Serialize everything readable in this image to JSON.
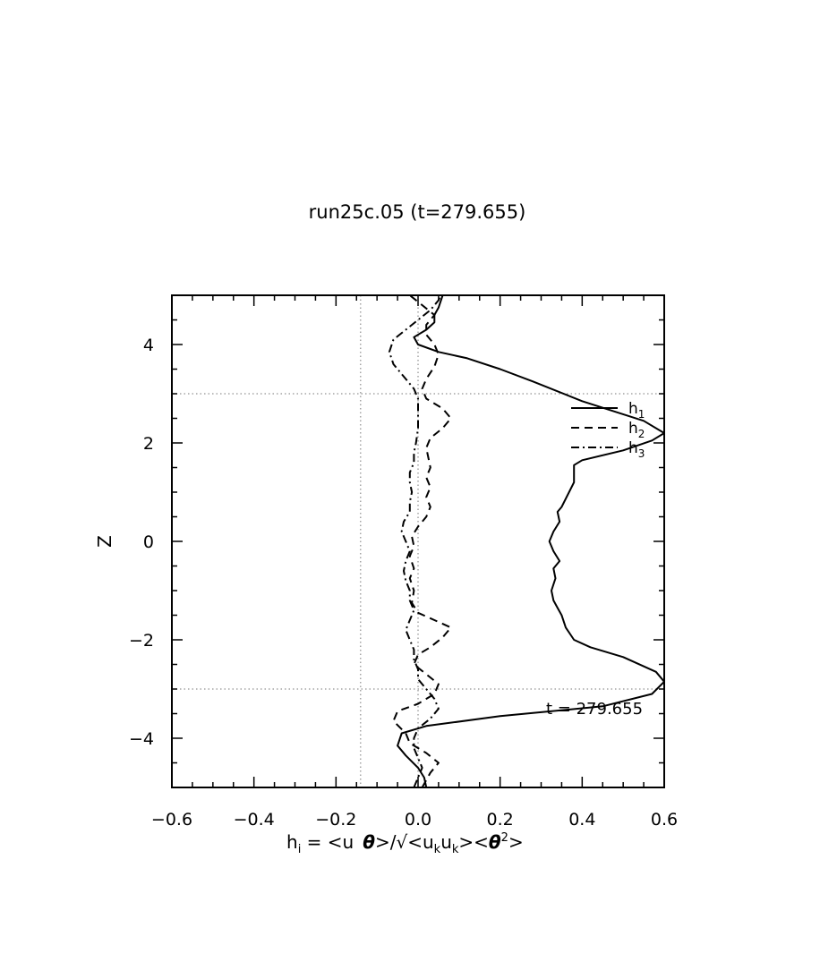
{
  "chart_data": {
    "type": "line",
    "title": "run25c.05 (t=279.655)",
    "xlabel": "h_i = <u_i θ>/√<u_k u_k><θ²>",
    "xlabel_parts": {
      "h": "h",
      "i": "i",
      "eq": " = <u",
      "theta1": "θ",
      "div": ">/√<u",
      "k1": "k",
      "u2": "u",
      "k2": "k",
      "mid": "><",
      "theta2": "θ",
      "sup2": "2",
      "end": ">"
    },
    "ylabel": "Z",
    "xlim": [
      -0.6,
      0.6
    ],
    "ylim": [
      -5,
      5
    ],
    "xticks": [
      -0.6,
      -0.4,
      -0.2,
      0.0,
      0.2,
      0.4,
      0.6
    ],
    "xtick_labels": [
      "−0.6",
      "−0.4",
      "−0.2",
      "0.0",
      "0.2",
      "0.4",
      "0.6"
    ],
    "yticks": [
      -4,
      -2,
      0,
      2,
      4
    ],
    "ytick_labels": [
      "−4",
      "−2",
      "0",
      "2",
      "4"
    ],
    "reference_lines": {
      "x": [
        -0.14,
        0.0
      ],
      "y": [
        3.0,
        -3.0
      ]
    },
    "annotation": "t = 279.655",
    "legend": {
      "placement": "upper-right",
      "entries": [
        {
          "base": "h",
          "sub": "1",
          "style": "solid"
        },
        {
          "base": "h",
          "sub": "2",
          "style": "dashed"
        },
        {
          "base": "h",
          "sub": "3",
          "style": "dashdot"
        }
      ]
    },
    "series": [
      {
        "style": "solid",
        "points": [
          [
            0.02,
            -5.0
          ],
          [
            0.015,
            -4.8
          ],
          [
            0.0,
            -4.6
          ],
          [
            -0.03,
            -4.35
          ],
          [
            -0.05,
            -4.15
          ],
          [
            -0.04,
            -3.9
          ],
          [
            0.02,
            -3.75
          ],
          [
            0.2,
            -3.55
          ],
          [
            0.45,
            -3.35
          ],
          [
            0.57,
            -3.1
          ],
          [
            0.6,
            -2.85
          ],
          [
            0.58,
            -2.65
          ],
          [
            0.5,
            -2.35
          ],
          [
            0.42,
            -2.15
          ],
          [
            0.38,
            -2.0
          ],
          [
            0.36,
            -1.75
          ],
          [
            0.35,
            -1.5
          ],
          [
            0.34,
            -1.35
          ],
          [
            0.33,
            -1.2
          ],
          [
            0.325,
            -1.0
          ],
          [
            0.335,
            -0.75
          ],
          [
            0.33,
            -0.55
          ],
          [
            0.345,
            -0.4
          ],
          [
            0.33,
            -0.2
          ],
          [
            0.32,
            0.0
          ],
          [
            0.33,
            0.2
          ],
          [
            0.345,
            0.4
          ],
          [
            0.34,
            0.6
          ],
          [
            0.35,
            0.7
          ],
          [
            0.38,
            1.2
          ],
          [
            0.38,
            1.45
          ],
          [
            0.38,
            1.55
          ],
          [
            0.4,
            1.65
          ],
          [
            0.5,
            1.85
          ],
          [
            0.57,
            2.05
          ],
          [
            0.6,
            2.2
          ],
          [
            0.55,
            2.45
          ],
          [
            0.4,
            2.85
          ],
          [
            0.28,
            3.25
          ],
          [
            0.2,
            3.5
          ],
          [
            0.12,
            3.72
          ],
          [
            0.05,
            3.85
          ],
          [
            0.0,
            4.0
          ],
          [
            -0.01,
            4.15
          ],
          [
            0.02,
            4.3
          ],
          [
            0.04,
            4.45
          ],
          [
            0.04,
            4.6
          ],
          [
            0.05,
            4.75
          ],
          [
            0.06,
            5.0
          ]
        ]
      },
      {
        "style": "dashed",
        "points": [
          [
            0.01,
            -5.0
          ],
          [
            0.03,
            -4.7
          ],
          [
            0.05,
            -4.5
          ],
          [
            0.02,
            -4.3
          ],
          [
            -0.02,
            -4.1
          ],
          [
            -0.03,
            -3.9
          ],
          [
            -0.06,
            -3.65
          ],
          [
            -0.05,
            -3.45
          ],
          [
            0.0,
            -3.3
          ],
          [
            0.04,
            -3.1
          ],
          [
            0.05,
            -2.9
          ],
          [
            0.02,
            -2.7
          ],
          [
            -0.01,
            -2.5
          ],
          [
            0.0,
            -2.3
          ],
          [
            0.03,
            -2.15
          ],
          [
            0.06,
            -1.95
          ],
          [
            0.08,
            -1.75
          ],
          [
            0.04,
            -1.6
          ],
          [
            0.0,
            -1.45
          ],
          [
            -0.015,
            -1.25
          ],
          [
            -0.01,
            -1.0
          ],
          [
            -0.02,
            -0.75
          ],
          [
            -0.01,
            -0.55
          ],
          [
            -0.02,
            -0.3
          ],
          [
            -0.01,
            -0.1
          ],
          [
            -0.015,
            0.1
          ],
          [
            0.0,
            0.3
          ],
          [
            0.02,
            0.5
          ],
          [
            0.03,
            0.7
          ],
          [
            0.02,
            0.9
          ],
          [
            0.03,
            1.1
          ],
          [
            0.02,
            1.3
          ],
          [
            0.03,
            1.5
          ],
          [
            0.025,
            1.7
          ],
          [
            0.02,
            1.9
          ],
          [
            0.03,
            2.1
          ],
          [
            0.06,
            2.3
          ],
          [
            0.08,
            2.5
          ],
          [
            0.06,
            2.7
          ],
          [
            0.02,
            2.9
          ],
          [
            0.01,
            3.1
          ],
          [
            0.02,
            3.3
          ],
          [
            0.04,
            3.55
          ],
          [
            0.05,
            3.8
          ],
          [
            0.04,
            4.0
          ],
          [
            0.02,
            4.2
          ],
          [
            0.02,
            4.4
          ],
          [
            0.04,
            4.6
          ],
          [
            0.01,
            4.8
          ],
          [
            -0.02,
            5.0
          ]
        ]
      },
      {
        "style": "dashdot",
        "points": [
          [
            -0.01,
            -5.0
          ],
          [
            0.0,
            -4.8
          ],
          [
            0.01,
            -4.6
          ],
          [
            0.0,
            -4.4
          ],
          [
            -0.01,
            -4.2
          ],
          [
            -0.01,
            -4.0
          ],
          [
            0.0,
            -3.8
          ],
          [
            0.03,
            -3.6
          ],
          [
            0.05,
            -3.4
          ],
          [
            0.04,
            -3.2
          ],
          [
            0.02,
            -3.0
          ],
          [
            0.0,
            -2.8
          ],
          [
            0.0,
            -2.6
          ],
          [
            -0.01,
            -2.4
          ],
          [
            -0.01,
            -2.2
          ],
          [
            -0.02,
            -2.0
          ],
          [
            -0.03,
            -1.8
          ],
          [
            -0.02,
            -1.6
          ],
          [
            -0.01,
            -1.4
          ],
          [
            -0.02,
            -1.2
          ],
          [
            -0.02,
            -1.0
          ],
          [
            -0.03,
            -0.8
          ],
          [
            -0.035,
            -0.6
          ],
          [
            -0.03,
            -0.4
          ],
          [
            -0.02,
            -0.2
          ],
          [
            -0.03,
            0.0
          ],
          [
            -0.04,
            0.2
          ],
          [
            -0.035,
            0.4
          ],
          [
            -0.02,
            0.6
          ],
          [
            -0.02,
            0.8
          ],
          [
            -0.015,
            1.0
          ],
          [
            -0.02,
            1.2
          ],
          [
            -0.02,
            1.4
          ],
          [
            -0.01,
            1.6
          ],
          [
            -0.01,
            1.8
          ],
          [
            -0.005,
            2.0
          ],
          [
            0.0,
            2.3
          ],
          [
            0.0,
            2.6
          ],
          [
            0.0,
            2.9
          ],
          [
            -0.01,
            3.1
          ],
          [
            -0.03,
            3.3
          ],
          [
            -0.06,
            3.6
          ],
          [
            -0.07,
            3.85
          ],
          [
            -0.06,
            4.1
          ],
          [
            -0.03,
            4.3
          ],
          [
            0.0,
            4.5
          ],
          [
            0.03,
            4.7
          ],
          [
            0.05,
            4.9
          ],
          [
            0.055,
            5.0
          ]
        ]
      }
    ]
  }
}
